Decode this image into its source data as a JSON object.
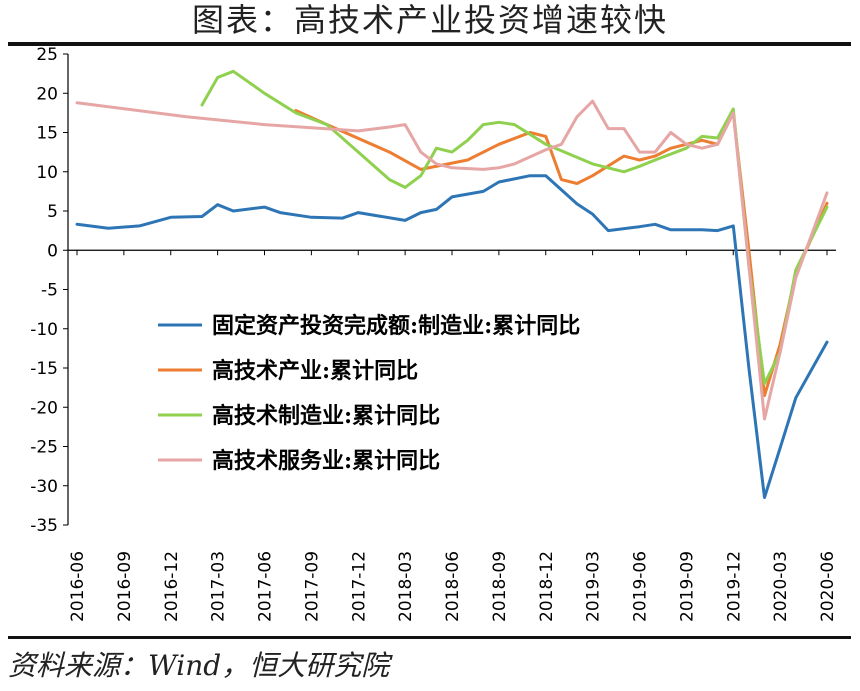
{
  "title": "图表：高技术产业投资增速较快",
  "source": "资料来源：Wind，恒大研究院",
  "chart_data": {
    "type": "line",
    "title": "图表：高技术产业投资增速较快",
    "xlabel": "",
    "ylabel": "",
    "ylim": [
      -35,
      25
    ],
    "y_ticks": [
      25,
      20,
      15,
      10,
      5,
      0,
      -5,
      -10,
      -15,
      -20,
      -25,
      -30,
      -35
    ],
    "x_tick_labels": [
      "2016-06",
      "2016-09",
      "2016-12",
      "2017-03",
      "2017-06",
      "2017-09",
      "2017-12",
      "2018-03",
      "2018-06",
      "2018-09",
      "2018-12",
      "2019-03",
      "2019-06",
      "2019-09",
      "2019-12",
      "2020-03",
      "2020-06"
    ],
    "grid": false,
    "legend_position": "center-left",
    "series": [
      {
        "name": "固定资产投资完成额:制造业:累计同比",
        "color": "#2e75b6",
        "points": [
          [
            "2016-06",
            3.3
          ],
          [
            "2016-08",
            2.8
          ],
          [
            "2016-10",
            3.1
          ],
          [
            "2016-12",
            4.2
          ],
          [
            "2017-02",
            4.3
          ],
          [
            "2017-03",
            5.8
          ],
          [
            "2017-04",
            5.0
          ],
          [
            "2017-06",
            5.5
          ],
          [
            "2017-07",
            4.8
          ],
          [
            "2017-09",
            4.2
          ],
          [
            "2017-11",
            4.1
          ],
          [
            "2017-12",
            4.8
          ],
          [
            "2018-03",
            3.8
          ],
          [
            "2018-04",
            4.8
          ],
          [
            "2018-05",
            5.2
          ],
          [
            "2018-06",
            6.8
          ],
          [
            "2018-08",
            7.5
          ],
          [
            "2018-09",
            8.7
          ],
          [
            "2018-11",
            9.5
          ],
          [
            "2018-12",
            9.5
          ],
          [
            "2019-02",
            5.9
          ],
          [
            "2019-03",
            4.6
          ],
          [
            "2019-04",
            2.5
          ],
          [
            "2019-06",
            3.0
          ],
          [
            "2019-07",
            3.3
          ],
          [
            "2019-08",
            2.6
          ],
          [
            "2019-10",
            2.6
          ],
          [
            "2019-11",
            2.5
          ],
          [
            "2019-12",
            3.1
          ],
          [
            "2020-01",
            -15.0
          ],
          [
            "2020-02",
            -31.5
          ],
          [
            "2020-03",
            -25.2
          ],
          [
            "2020-04",
            -18.8
          ],
          [
            "2020-06",
            -11.7
          ]
        ]
      },
      {
        "name": "高技术产业:累计同比",
        "color": "#ed7d31",
        "points": [
          [
            "2017-08",
            17.8
          ],
          [
            "2017-10",
            16.0
          ],
          [
            "2018-02",
            12.5
          ],
          [
            "2018-04",
            10.3
          ],
          [
            "2018-07",
            11.5
          ],
          [
            "2018-09",
            13.5
          ],
          [
            "2018-11",
            15.0
          ],
          [
            "2018-12",
            14.5
          ],
          [
            "2019-01",
            9.0
          ],
          [
            "2019-02",
            8.5
          ],
          [
            "2019-03",
            9.5
          ],
          [
            "2019-05",
            12.0
          ],
          [
            "2019-06",
            11.5
          ],
          [
            "2019-07",
            12.0
          ],
          [
            "2019-08",
            13.0
          ],
          [
            "2019-09",
            13.5
          ],
          [
            "2019-10",
            14.0
          ],
          [
            "2019-11",
            13.5
          ],
          [
            "2019-12",
            17.5
          ],
          [
            "2020-01",
            0.0
          ],
          [
            "2020-02",
            -18.5
          ],
          [
            "2020-03",
            -12.0
          ],
          [
            "2020-04",
            -3.0
          ],
          [
            "2020-06",
            6.0
          ]
        ]
      },
      {
        "name": "高技术制造业:累计同比",
        "color": "#8fd14f",
        "points": [
          [
            "2017-02",
            18.5
          ],
          [
            "2017-03",
            22.0
          ],
          [
            "2017-04",
            22.8
          ],
          [
            "2017-06",
            20.0
          ],
          [
            "2017-08",
            17.5
          ],
          [
            "2017-10",
            16.0
          ],
          [
            "2017-12",
            12.5
          ],
          [
            "2018-02",
            9.0
          ],
          [
            "2018-03",
            8.0
          ],
          [
            "2018-04",
            9.5
          ],
          [
            "2018-05",
            13.0
          ],
          [
            "2018-06",
            12.5
          ],
          [
            "2018-07",
            14.0
          ],
          [
            "2018-08",
            16.0
          ],
          [
            "2018-09",
            16.3
          ],
          [
            "2018-10",
            16.0
          ],
          [
            "2018-12",
            13.5
          ],
          [
            "2019-03",
            11.0
          ],
          [
            "2019-05",
            10.0
          ],
          [
            "2019-06",
            10.7
          ],
          [
            "2019-07",
            11.5
          ],
          [
            "2019-09",
            13.0
          ],
          [
            "2019-10",
            14.5
          ],
          [
            "2019-11",
            14.3
          ],
          [
            "2019-12",
            18.0
          ],
          [
            "2020-01",
            -2.0
          ],
          [
            "2020-02",
            -17.0
          ],
          [
            "2020-03",
            -13.0
          ],
          [
            "2020-04",
            -2.5
          ],
          [
            "2020-06",
            5.5
          ]
        ]
      },
      {
        "name": "高技术服务业:累计同比",
        "color": "#e6a6a5",
        "points": [
          [
            "2016-06",
            18.8
          ],
          [
            "2017-01",
            17.0
          ],
          [
            "2017-06",
            16.0
          ],
          [
            "2017-12",
            15.2
          ],
          [
            "2018-02",
            15.7
          ],
          [
            "2018-03",
            16.0
          ],
          [
            "2018-04",
            12.5
          ],
          [
            "2018-05",
            11.0
          ],
          [
            "2018-06",
            10.5
          ],
          [
            "2018-08",
            10.3
          ],
          [
            "2018-09",
            10.5
          ],
          [
            "2018-10",
            11.0
          ],
          [
            "2018-12",
            12.8
          ],
          [
            "2019-01",
            13.5
          ],
          [
            "2019-02",
            17.0
          ],
          [
            "2019-03",
            19.0
          ],
          [
            "2019-04",
            15.5
          ],
          [
            "2019-05",
            15.5
          ],
          [
            "2019-06",
            12.5
          ],
          [
            "2019-07",
            12.5
          ],
          [
            "2019-08",
            15.0
          ],
          [
            "2019-09",
            13.5
          ],
          [
            "2019-10",
            13.0
          ],
          [
            "2019-11",
            13.5
          ],
          [
            "2019-12",
            17.5
          ],
          [
            "2020-01",
            -2.0
          ],
          [
            "2020-02",
            -21.5
          ],
          [
            "2020-03",
            -13.0
          ],
          [
            "2020-04",
            -3.5
          ],
          [
            "2020-06",
            7.3
          ]
        ]
      }
    ]
  }
}
